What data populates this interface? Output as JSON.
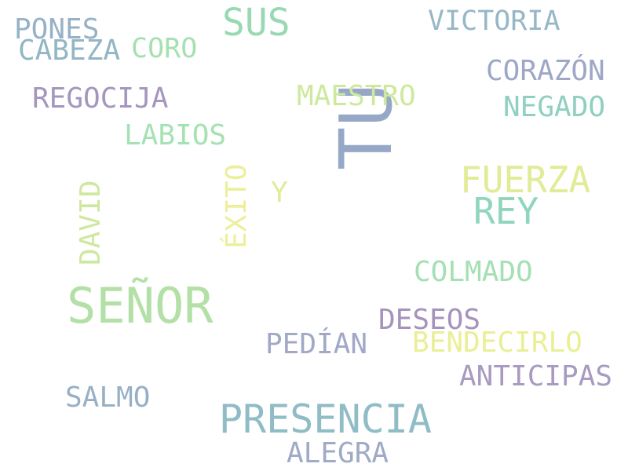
{
  "words": [
    {
      "id": "tu",
      "text": "TU",
      "color": "#97a8c6"
    },
    {
      "id": "senor",
      "text": "SEÑOR",
      "color": "#b3e0a6"
    },
    {
      "id": "presencia",
      "text": "PRESENCIA",
      "color": "#90bcc6"
    },
    {
      "id": "fuerza",
      "text": "FUERZA",
      "color": "#e2eb96"
    },
    {
      "id": "sus",
      "text": "SUS",
      "color": "#98d9b3"
    },
    {
      "id": "rey",
      "text": "REY",
      "color": "#8fd6bd"
    },
    {
      "id": "victoria",
      "text": "VICTORIA",
      "color": "#96b8c6"
    },
    {
      "id": "corazon",
      "text": "CORAZÓN",
      "color": "#9ea8c6"
    },
    {
      "id": "negado",
      "text": "NEGADO",
      "color": "#8ed0c1"
    },
    {
      "id": "pones",
      "text": "PONES",
      "color": "#97b2c6"
    },
    {
      "id": "cabeza",
      "text": "CABEZA",
      "color": "#92b6c4"
    },
    {
      "id": "coro",
      "text": "CORO",
      "color": "#a6e0b0"
    },
    {
      "id": "regocija",
      "text": "REGOCIJA",
      "color": "#a596bf"
    },
    {
      "id": "maestro",
      "text": "MAESTRO",
      "color": "#cde99e"
    },
    {
      "id": "labios",
      "text": "LABIOS",
      "color": "#a5e2b3"
    },
    {
      "id": "david",
      "text": "DAVID",
      "color": "#cfe8a0"
    },
    {
      "id": "exito",
      "text": "ÉXITO",
      "color": "#ecef9a"
    },
    {
      "id": "y",
      "text": "Y",
      "color": "#e0ec9c"
    },
    {
      "id": "colmado",
      "text": "COLMADO",
      "color": "#a4e0b3"
    },
    {
      "id": "deseos",
      "text": "DESEOS",
      "color": "#a593bd"
    },
    {
      "id": "pedian",
      "text": "PEDÍAN",
      "color": "#a1a8c8"
    },
    {
      "id": "bendecirlo",
      "text": "BENDECIRLO",
      "color": "#eaef96"
    },
    {
      "id": "anticipas",
      "text": "ANTICIPAS",
      "color": "#a89ac0"
    },
    {
      "id": "salmo",
      "text": "SALMO",
      "color": "#98b0c6"
    },
    {
      "id": "alegra",
      "text": "ALEGRA",
      "color": "#9faac6"
    }
  ]
}
